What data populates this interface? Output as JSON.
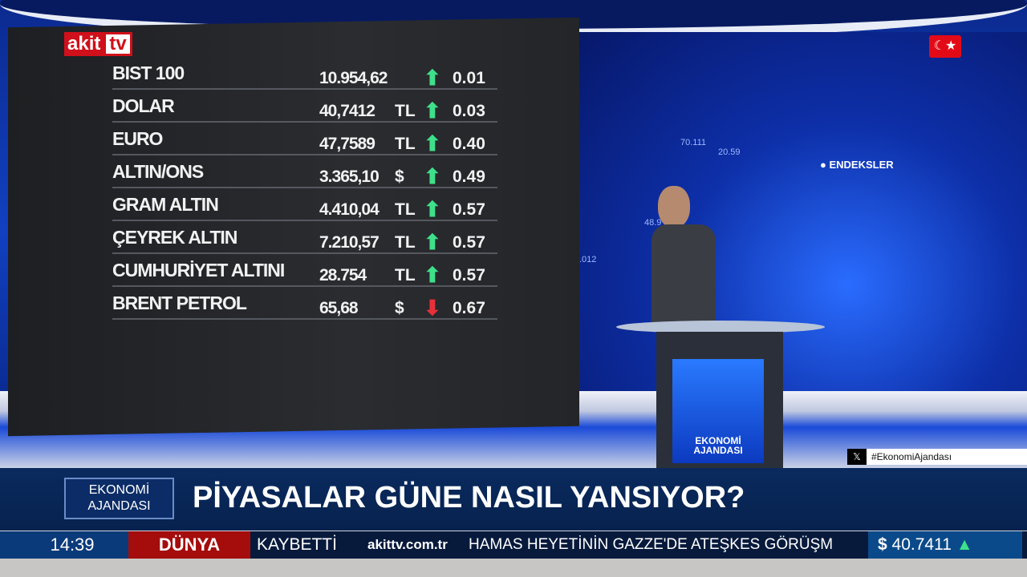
{
  "brand": {
    "logo_left": "akit",
    "logo_right": "tv"
  },
  "market_board": {
    "rows": [
      {
        "name": "BIST 100",
        "value": "10.954,62",
        "unit": "",
        "direction": "up",
        "change": "0.01"
      },
      {
        "name": "DOLAR",
        "value": "40,7412",
        "unit": "TL",
        "direction": "up",
        "change": "0.03"
      },
      {
        "name": "EURO",
        "value": "47,7589",
        "unit": "TL",
        "direction": "up",
        "change": "0.40"
      },
      {
        "name": "ALTIN/ONS",
        "value": "3.365,10",
        "unit": "$",
        "direction": "up",
        "change": "0.49"
      },
      {
        "name": "GRAM ALTIN",
        "value": "4.410,04",
        "unit": "TL",
        "direction": "up",
        "change": "0.57"
      },
      {
        "name": "ÇEYREK ALTIN",
        "value": "7.210,57",
        "unit": "TL",
        "direction": "up",
        "change": "0.57"
      },
      {
        "name": "CUMHURİYET ALTINI",
        "value": "28.754",
        "unit": "TL",
        "direction": "up",
        "change": "0.57"
      },
      {
        "name": "BRENT PETROL",
        "value": "65,68",
        "unit": "$",
        "direction": "down",
        "change": "0.67"
      }
    ],
    "colors": {
      "up": "#3ee08a",
      "down": "#e8303a"
    }
  },
  "background_screen": {
    "label": "ENDEKSLER",
    "numbers": [
      "70.111",
      "20.59",
      "48.9",
      ".012"
    ]
  },
  "desk": {
    "label": "EKONOMİ AJANDASI"
  },
  "hashtag": "#EkonomiAjandası",
  "lower_third": {
    "program": "EKONOMİ AJANDASI",
    "headline": "PİYASALAR GÜNE NASIL YANSIYOR?"
  },
  "ticker": {
    "time": "14:39",
    "category": "DÜNYA",
    "prev_item": "KAYBETTİ",
    "site": "akittv.com.tr",
    "item": "HAMAS HEYETİNİN GAZZE'DE ATEŞKES GÖRÜŞM",
    "currency_symbol": "$",
    "currency_value": "40.7411",
    "currency_direction": "up"
  }
}
